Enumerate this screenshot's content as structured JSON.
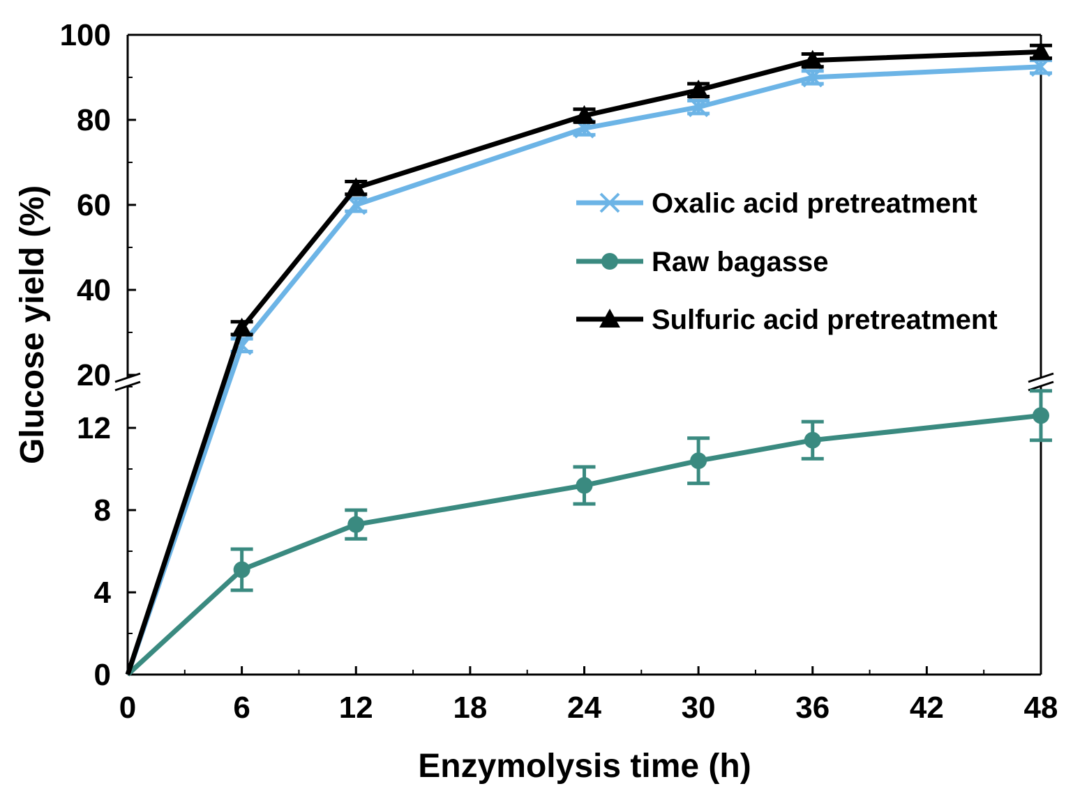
{
  "chart_data": {
    "type": "line",
    "title": "",
    "xlabel": "Enzymolysis time (h)",
    "ylabel": "Glucose yield (%)",
    "xlim": [
      0,
      48
    ],
    "x_ticks": [
      "0",
      "6",
      "12",
      "18",
      "24",
      "30",
      "36",
      "42",
      "48"
    ],
    "y_axis_break": {
      "lower_range": [
        0,
        15
      ],
      "upper_range": [
        20,
        100
      ]
    },
    "y_ticks_lower": [
      "0",
      "4",
      "8",
      "12"
    ],
    "y_ticks_upper": [
      "20",
      "40",
      "60",
      "80",
      "100"
    ],
    "legend_position": "right-center",
    "series": [
      {
        "name": "Oxalic acid pretreatment",
        "color": "#6cb4e6",
        "marker": "x",
        "x": [
          0,
          6,
          12,
          24,
          30,
          36,
          48
        ],
        "y": [
          0,
          27,
          60,
          78,
          83,
          90,
          92.5
        ],
        "err": [
          0,
          1.5,
          1.5,
          1.5,
          1.5,
          1.5,
          1.5
        ]
      },
      {
        "name": "Raw bagasse",
        "color": "#3a8a80",
        "marker": "circle",
        "x": [
          0,
          6,
          12,
          24,
          30,
          36,
          48
        ],
        "y": [
          0,
          5.1,
          7.3,
          9.2,
          10.4,
          11.4,
          12.6
        ],
        "err": [
          0,
          1.0,
          0.7,
          0.9,
          1.1,
          0.9,
          1.2
        ]
      },
      {
        "name": "Sulfuric acid pretreatment",
        "color": "#000000",
        "marker": "triangle",
        "x": [
          0,
          6,
          12,
          24,
          30,
          36,
          48
        ],
        "y": [
          0,
          31,
          64,
          81,
          87,
          94,
          96
        ],
        "err": [
          0,
          1.5,
          1.5,
          1.5,
          1.5,
          1.5,
          1.5
        ]
      }
    ]
  }
}
